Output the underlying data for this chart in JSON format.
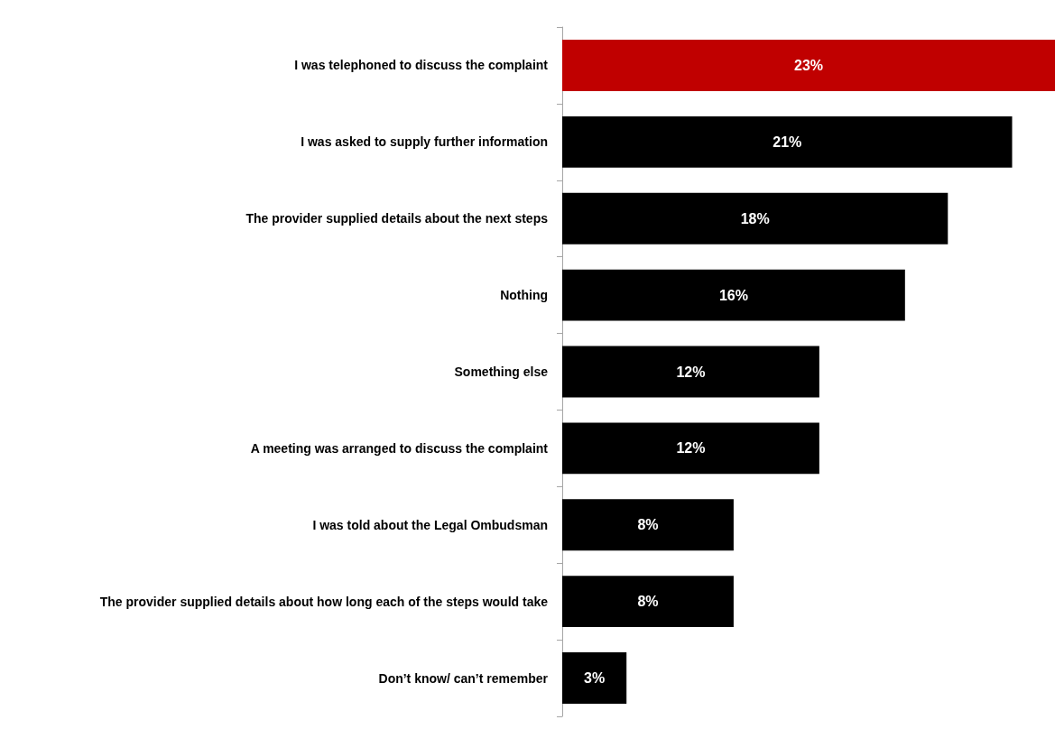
{
  "chart_data": {
    "type": "bar",
    "orientation": "horizontal",
    "categories": [
      "I was telephoned to discuss the complaint",
      "I was asked to supply further information",
      "The provider supplied details about the next steps",
      "Nothing",
      "Something else",
      "A meeting was arranged to discuss the complaint",
      "I was told about the Legal Ombudsman",
      "The provider supplied details about how long each of the steps would take",
      "Don’t know/ can’t remember"
    ],
    "values": [
      23,
      21,
      18,
      16,
      12,
      12,
      8,
      8,
      3
    ],
    "colors": [
      "#c00000",
      "#000000",
      "#000000",
      "#000000",
      "#000000",
      "#000000",
      "#000000",
      "#000000",
      "#000000"
    ],
    "value_labels": [
      "23%",
      "21%",
      "18%",
      "16%",
      "12%",
      "12%",
      "8%",
      "8%",
      "3%"
    ]
  }
}
